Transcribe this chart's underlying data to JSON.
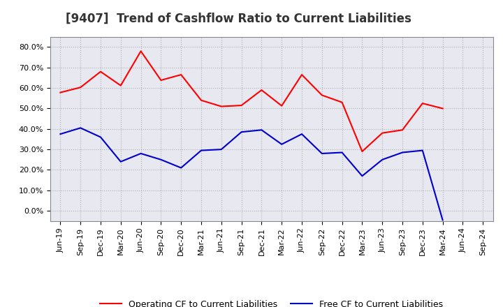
{
  "title": "[9407]  Trend of Cashflow Ratio to Current Liabilities",
  "x_labels": [
    "Jun-19",
    "Sep-19",
    "Dec-19",
    "Mar-20",
    "Jun-20",
    "Sep-20",
    "Dec-20",
    "Mar-21",
    "Jun-21",
    "Sep-21",
    "Dec-21",
    "Mar-22",
    "Jun-22",
    "Sep-22",
    "Dec-22",
    "Mar-23",
    "Jun-23",
    "Sep-23",
    "Dec-23",
    "Mar-24",
    "Jun-24",
    "Sep-24"
  ],
  "operating_cf": [
    0.578,
    0.603,
    0.68,
    0.612,
    0.78,
    0.638,
    0.665,
    0.54,
    0.51,
    0.515,
    0.59,
    0.513,
    0.665,
    0.565,
    0.53,
    0.29,
    0.38,
    0.395,
    0.525,
    0.5,
    null,
    null
  ],
  "free_cf": [
    0.375,
    0.405,
    0.36,
    0.24,
    0.28,
    0.25,
    0.21,
    0.295,
    0.3,
    0.385,
    0.395,
    0.325,
    0.375,
    0.28,
    0.285,
    0.17,
    0.25,
    0.285,
    0.295,
    -0.045,
    null,
    null
  ],
  "operating_color": "#FF0000",
  "free_color": "#0000CC",
  "ylim": [
    -0.05,
    0.85
  ],
  "yticks": [
    0.0,
    0.1,
    0.2,
    0.3,
    0.4,
    0.5,
    0.6,
    0.7,
    0.8
  ],
  "background_color": "#FFFFFF",
  "plot_bg_color": "#E8E8F0",
  "grid_color": "#AAAAAA",
  "title_fontsize": 12,
  "legend_fontsize": 9,
  "tick_fontsize": 8
}
